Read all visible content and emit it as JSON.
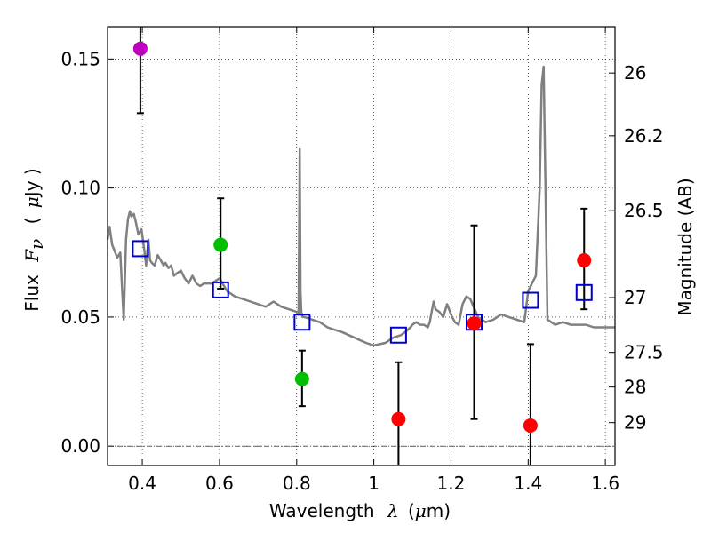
{
  "chart_data": {
    "type": "scatter",
    "xlabel": {
      "prefix": "Wavelength",
      "symbol": "λ",
      "unit_open": "(",
      "unit_mu": "μ",
      "unit_rest": "m)"
    },
    "ylabel": {
      "prefix": "Flux",
      "symbol": "F",
      "subscript": "ν",
      "unit_open": "(",
      "unit_mu": "μ",
      "unit_rest": "Jy )"
    },
    "y2label": "Magnitude (AB)",
    "xlim": [
      0.31,
      1.625
    ],
    "ylim": [
      -0.0075,
      0.1625
    ],
    "grid": true,
    "xticks": [
      0.4,
      0.6,
      0.8,
      1.0,
      1.2,
      1.4,
      1.6
    ],
    "xtick_labels": [
      "0.4",
      "0.6",
      "0.8",
      "1",
      "1.2",
      "1.4",
      "1.6"
    ],
    "yticks": [
      0.0,
      0.05,
      0.1,
      0.15
    ],
    "ytick_labels": [
      "0.00",
      "0.05",
      "0.10",
      "0.15"
    ],
    "y2ticks": [
      {
        "mag": 26.0,
        "label": "26"
      },
      {
        "mag": 26.2,
        "label": "26.2"
      },
      {
        "mag": 26.5,
        "label": "26.5"
      },
      {
        "mag": 27.0,
        "label": "27"
      },
      {
        "mag": 27.5,
        "label": "27.5"
      },
      {
        "mag": 28.0,
        "label": "28"
      },
      {
        "mag": 29.0,
        "label": "29"
      }
    ],
    "zero_line": 0.0,
    "photometry": [
      {
        "x": 0.395,
        "y": 0.154,
        "yerr_low": 0.129,
        "yerr_high": 0.17,
        "color": "#bf00bf"
      },
      {
        "x": 0.603,
        "y": 0.078,
        "yerr_low": 0.061,
        "yerr_high": 0.096,
        "color": "#00bf00"
      },
      {
        "x": 0.814,
        "y": 0.026,
        "yerr_low": 0.0155,
        "yerr_high": 0.037,
        "color": "#00bf00"
      },
      {
        "x": 1.064,
        "y": 0.0105,
        "yerr_low": -0.01,
        "yerr_high": 0.0325,
        "color": "#ff0000"
      },
      {
        "x": 1.26,
        "y": 0.0475,
        "yerr_low": 0.0105,
        "yerr_high": 0.0855,
        "color": "#ff0000"
      },
      {
        "x": 1.406,
        "y": 0.008,
        "yerr_low": -0.01,
        "yerr_high": 0.0395,
        "color": "#ff0000"
      },
      {
        "x": 1.545,
        "y": 0.072,
        "yerr_low": 0.053,
        "yerr_high": 0.092,
        "color": "#ff0000"
      }
    ],
    "model_points": [
      {
        "x": 0.395,
        "y": 0.0765
      },
      {
        "x": 0.603,
        "y": 0.0605
      },
      {
        "x": 0.814,
        "y": 0.048
      },
      {
        "x": 1.064,
        "y": 0.043
      },
      {
        "x": 1.26,
        "y": 0.048
      },
      {
        "x": 1.406,
        "y": 0.0565
      },
      {
        "x": 1.545,
        "y": 0.0595
      }
    ],
    "spectrum": {
      "color": "#808080",
      "x": [
        0.31,
        0.315,
        0.322,
        0.33,
        0.335,
        0.343,
        0.348,
        0.352,
        0.358,
        0.363,
        0.368,
        0.372,
        0.378,
        0.383,
        0.39,
        0.398,
        0.405,
        0.41,
        0.416,
        0.42,
        0.425,
        0.432,
        0.44,
        0.448,
        0.455,
        0.46,
        0.468,
        0.475,
        0.482,
        0.49,
        0.5,
        0.51,
        0.52,
        0.53,
        0.54,
        0.55,
        0.56,
        0.58,
        0.6,
        0.62,
        0.64,
        0.66,
        0.68,
        0.7,
        0.72,
        0.74,
        0.76,
        0.78,
        0.8,
        0.805,
        0.808,
        0.81,
        0.812,
        0.815,
        0.82,
        0.84,
        0.86,
        0.88,
        0.9,
        0.92,
        0.95,
        0.98,
        1.0,
        1.03,
        1.05,
        1.07,
        1.08,
        1.095,
        1.1,
        1.11,
        1.12,
        1.13,
        1.14,
        1.145,
        1.15,
        1.155,
        1.16,
        1.17,
        1.18,
        1.19,
        1.2,
        1.21,
        1.22,
        1.23,
        1.24,
        1.25,
        1.27,
        1.29,
        1.31,
        1.33,
        1.35,
        1.37,
        1.39,
        1.4,
        1.41,
        1.42,
        1.43,
        1.435,
        1.44,
        1.445,
        1.45,
        1.46,
        1.47,
        1.49,
        1.51,
        1.53,
        1.55,
        1.57,
        1.59,
        1.61,
        1.625
      ],
      "y": [
        0.08,
        0.085,
        0.078,
        0.075,
        0.073,
        0.075,
        0.06,
        0.049,
        0.08,
        0.088,
        0.091,
        0.089,
        0.09,
        0.087,
        0.082,
        0.084,
        0.076,
        0.07,
        0.08,
        0.072,
        0.071,
        0.07,
        0.074,
        0.072,
        0.07,
        0.071,
        0.069,
        0.07,
        0.066,
        0.067,
        0.068,
        0.065,
        0.063,
        0.066,
        0.063,
        0.062,
        0.063,
        0.063,
        0.065,
        0.06,
        0.058,
        0.057,
        0.056,
        0.055,
        0.054,
        0.056,
        0.054,
        0.053,
        0.052,
        0.051,
        0.115,
        0.06,
        0.052,
        0.05,
        0.05,
        0.049,
        0.048,
        0.046,
        0.045,
        0.044,
        0.042,
        0.04,
        0.039,
        0.04,
        0.042,
        0.043,
        0.044,
        0.046,
        0.047,
        0.048,
        0.047,
        0.047,
        0.046,
        0.048,
        0.052,
        0.056,
        0.053,
        0.052,
        0.05,
        0.055,
        0.051,
        0.048,
        0.047,
        0.055,
        0.058,
        0.057,
        0.05,
        0.048,
        0.049,
        0.051,
        0.05,
        0.049,
        0.048,
        0.06,
        0.063,
        0.066,
        0.1,
        0.14,
        0.147,
        0.1,
        0.049,
        0.048,
        0.047,
        0.048,
        0.047,
        0.047,
        0.047,
        0.046,
        0.046,
        0.046,
        0.046
      ]
    }
  }
}
